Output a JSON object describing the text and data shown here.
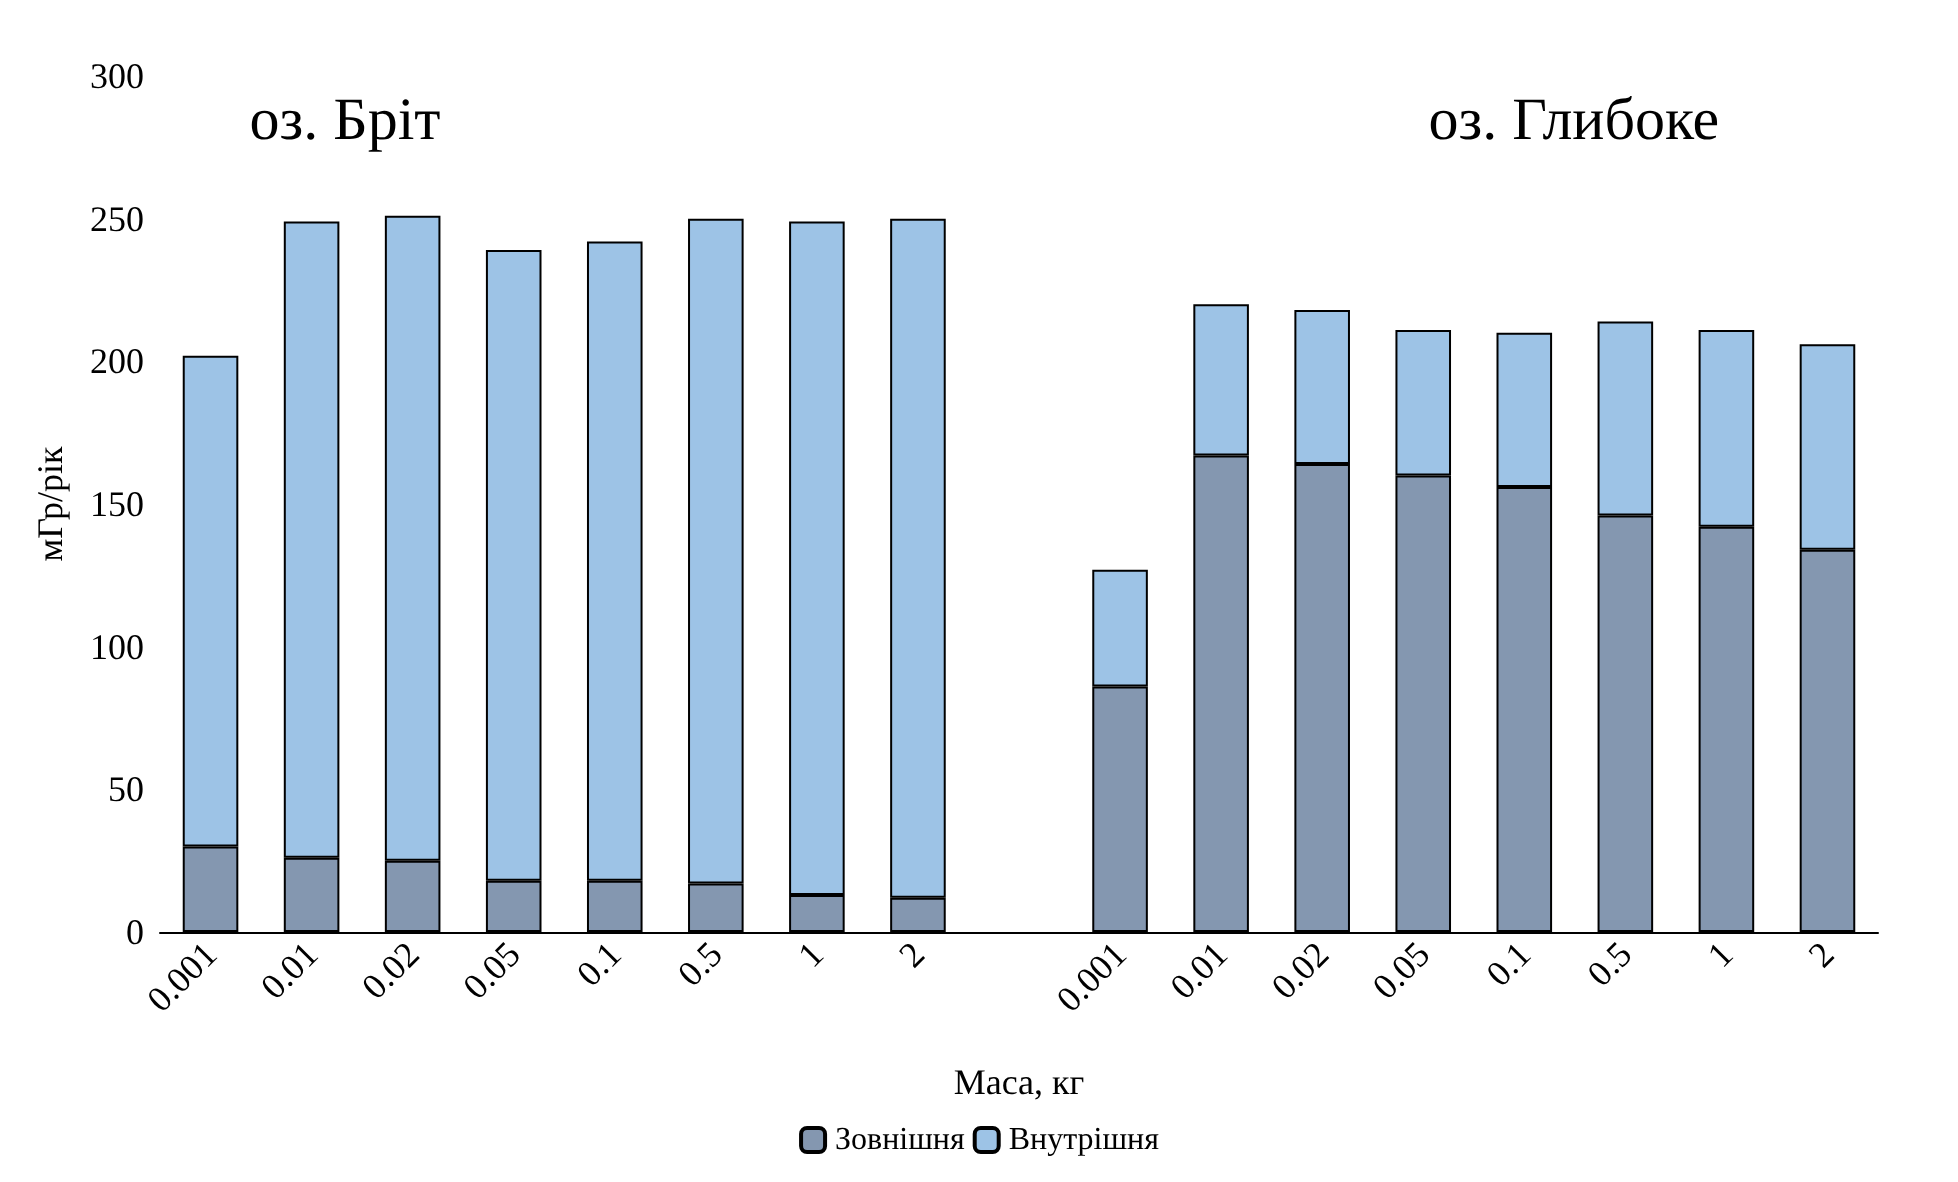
{
  "chart_data": {
    "type": "bar",
    "stacked": true,
    "xlabel": "Маса, кг",
    "ylabel": "мГр/рік",
    "annotations": [
      "оз. Бріт",
      "оз. Глибоке"
    ],
    "categories": [
      "0.001",
      "0.01",
      "0.02",
      "0.05",
      "0.1",
      "0.5",
      "1",
      "2",
      null,
      "0.001",
      "0.01",
      "0.02",
      "0.05",
      "0.1",
      "0.5",
      "1",
      "2"
    ],
    "series": [
      {
        "name": "Зовнішня",
        "color": "#8497b0",
        "values": [
          30,
          26,
          25,
          18,
          18,
          17,
          13,
          12,
          null,
          86,
          167,
          164,
          160,
          156,
          146,
          142,
          134
        ]
      },
      {
        "name": "Внутрішня",
        "color": "#9dc3e6",
        "values": [
          172,
          223,
          226,
          221,
          224,
          233,
          236,
          238,
          null,
          41,
          53,
          54,
          51,
          54,
          68,
          69,
          72
        ]
      }
    ],
    "ylim": [
      0,
      300
    ],
    "yticks": [
      0,
      50,
      100,
      150,
      200,
      250,
      300
    ],
    "grid": false,
    "legend": "bottom"
  }
}
